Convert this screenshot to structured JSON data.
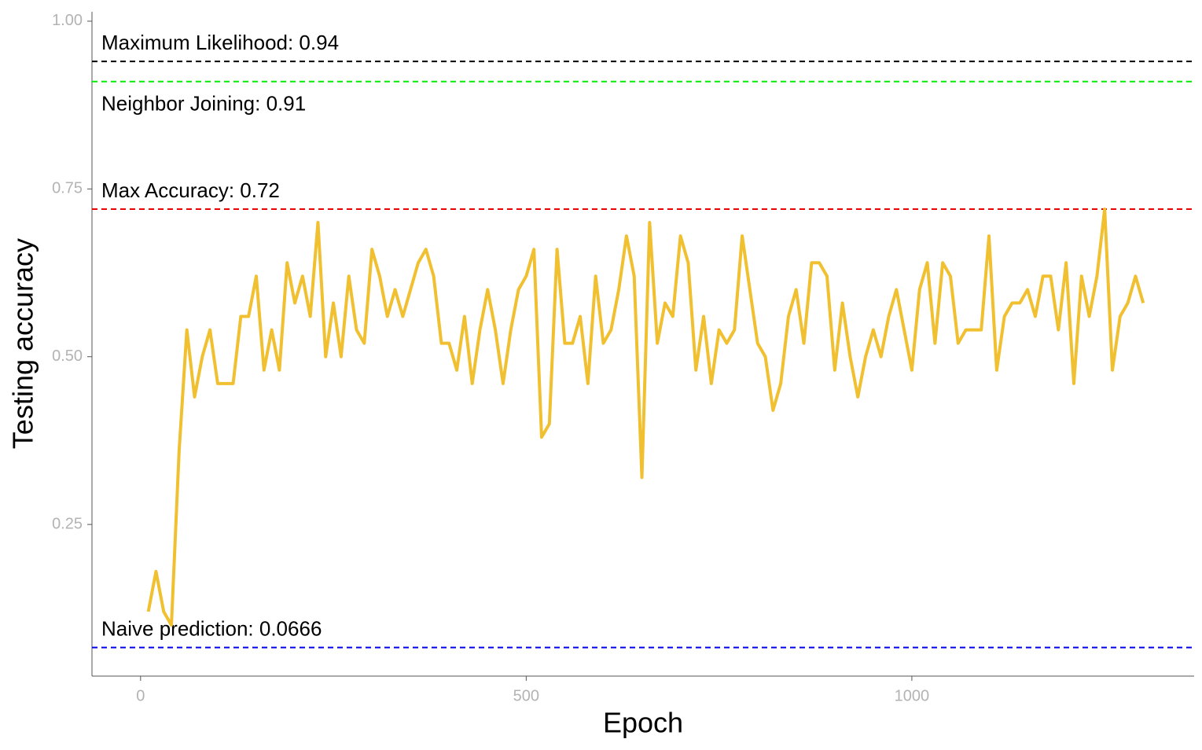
{
  "chart_data": {
    "type": "line",
    "x_label": "Epoch",
    "y_label": "Testing accuracy",
    "x": [
      10,
      20,
      30,
      40,
      50,
      60,
      70,
      80,
      90,
      100,
      110,
      120,
      130,
      140,
      150,
      160,
      170,
      180,
      190,
      200,
      210,
      220,
      230,
      240,
      250,
      260,
      270,
      280,
      290,
      300,
      310,
      320,
      330,
      340,
      350,
      360,
      370,
      380,
      390,
      400,
      410,
      420,
      430,
      440,
      450,
      460,
      470,
      480,
      490,
      500,
      510,
      520,
      530,
      540,
      550,
      560,
      570,
      580,
      590,
      600,
      610,
      620,
      630,
      640,
      650,
      660,
      670,
      680,
      690,
      700,
      710,
      720,
      730,
      740,
      750,
      760,
      770,
      780,
      790,
      800,
      810,
      820,
      830,
      840,
      850,
      860,
      870,
      880,
      890,
      900,
      910,
      920,
      930,
      940,
      950,
      960,
      970,
      980,
      990,
      1000,
      1010,
      1020,
      1030,
      1040,
      1050,
      1060,
      1070,
      1080,
      1090,
      1100,
      1110,
      1120,
      1130,
      1140,
      1150,
      1160,
      1170,
      1180,
      1190,
      1200,
      1210,
      1220,
      1230,
      1240,
      1250,
      1260,
      1270,
      1280,
      1290,
      1300
    ],
    "values": [
      0.12,
      0.18,
      0.12,
      0.1,
      0.36,
      0.54,
      0.44,
      0.5,
      0.54,
      0.46,
      0.46,
      0.46,
      0.56,
      0.56,
      0.62,
      0.48,
      0.54,
      0.48,
      0.64,
      0.58,
      0.62,
      0.56,
      0.7,
      0.5,
      0.58,
      0.5,
      0.62,
      0.54,
      0.52,
      0.66,
      0.62,
      0.56,
      0.6,
      0.56,
      0.6,
      0.64,
      0.66,
      0.62,
      0.52,
      0.52,
      0.48,
      0.56,
      0.46,
      0.54,
      0.6,
      0.54,
      0.46,
      0.54,
      0.6,
      0.62,
      0.66,
      0.38,
      0.4,
      0.66,
      0.52,
      0.52,
      0.56,
      0.46,
      0.62,
      0.52,
      0.54,
      0.6,
      0.68,
      0.62,
      0.32,
      0.7,
      0.52,
      0.58,
      0.56,
      0.68,
      0.64,
      0.48,
      0.56,
      0.46,
      0.54,
      0.52,
      0.54,
      0.68,
      0.6,
      0.52,
      0.5,
      0.42,
      0.46,
      0.56,
      0.6,
      0.52,
      0.64,
      0.64,
      0.62,
      0.48,
      0.58,
      0.5,
      0.44,
      0.5,
      0.54,
      0.5,
      0.56,
      0.6,
      0.54,
      0.48,
      0.6,
      0.64,
      0.52,
      0.64,
      0.62,
      0.52,
      0.54,
      0.54,
      0.54,
      0.68,
      0.48,
      0.56,
      0.58,
      0.58,
      0.6,
      0.56,
      0.62,
      0.62,
      0.54,
      0.64,
      0.46,
      0.62,
      0.56,
      0.62,
      0.72,
      0.48,
      0.56,
      0.58,
      0.62,
      0.58
    ],
    "color": "#f0c030",
    "reference_lines": [
      {
        "label": "Maximum Likelihood: 0.94",
        "value": 0.94,
        "color": "#000000"
      },
      {
        "label": "Neighbor Joining: 0.91",
        "value": 0.91,
        "color": "#00ee00"
      },
      {
        "label": "Max Accuracy: 0.72",
        "value": 0.72,
        "color": "#ee0000"
      },
      {
        "label": "Naive prediction: 0.0666",
        "value": 0.0666,
        "color": "#0000ee"
      }
    ],
    "xlim": [
      -63,
      1366
    ],
    "xticks": [
      0,
      500,
      1000
    ],
    "ylim": [
      0.024,
      1.014
    ],
    "yticks": [
      0.25,
      {
        "value": 0.5,
        "label": "0.50"
      },
      0.75,
      {
        "value": 1,
        "label": "1.00"
      }
    ],
    "grid": false
  }
}
